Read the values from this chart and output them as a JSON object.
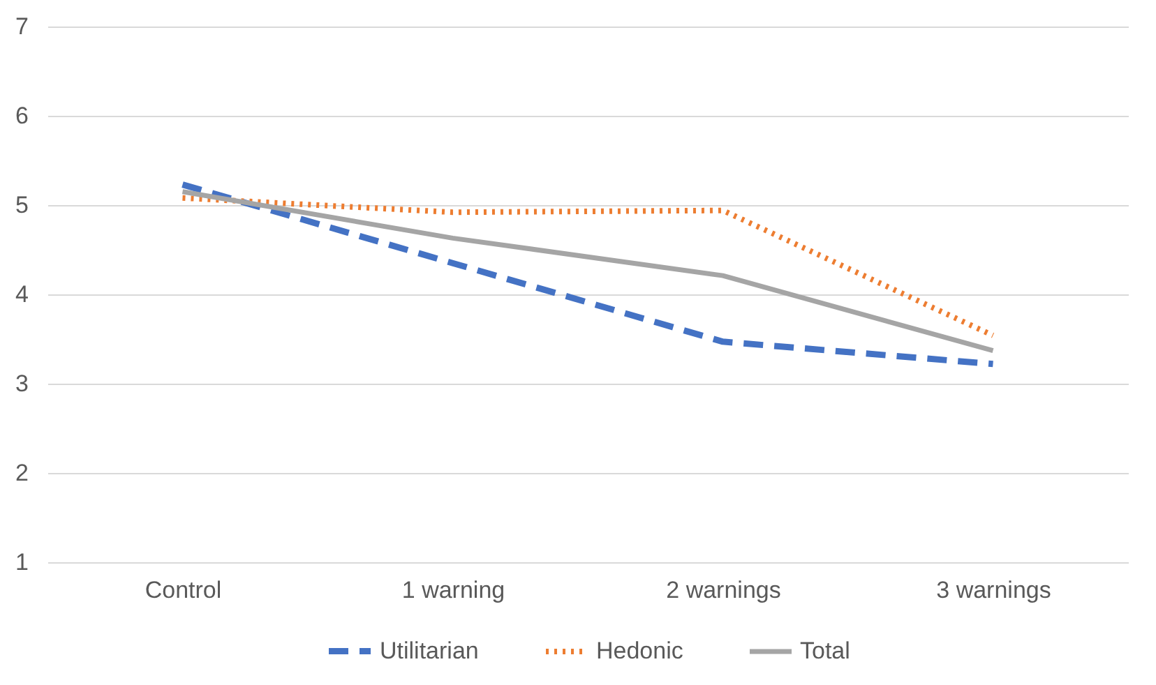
{
  "chart_data": {
    "type": "line",
    "categories": [
      "Control",
      "1 warning",
      "2 warnings",
      "3 warnings"
    ],
    "series": [
      {
        "name": "Utilitarian",
        "color": "#4472c4",
        "line_style": "dashed",
        "values": [
          5.23,
          4.35,
          3.47,
          3.22
        ]
      },
      {
        "name": "Hedonic",
        "color": "#ed7d31",
        "line_style": "dotted",
        "values": [
          5.08,
          4.92,
          4.94,
          3.54
        ]
      },
      {
        "name": "Total",
        "color": "#a5a5a5",
        "line_style": "solid",
        "values": [
          5.15,
          4.63,
          4.21,
          3.37
        ]
      }
    ],
    "ylim": [
      1,
      7
    ],
    "yticks": [
      1,
      2,
      3,
      4,
      5,
      6,
      7
    ],
    "grid": "y",
    "legend": "bottom"
  }
}
